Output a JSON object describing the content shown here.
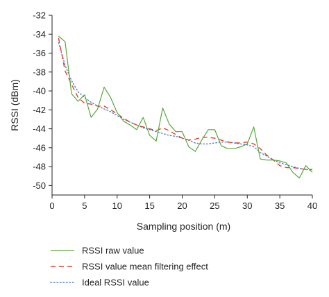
{
  "chart_data": {
    "type": "line",
    "xlabel": "Sampling position (m)",
    "ylabel": "RSSI (dBm)",
    "xlim": [
      0,
      40
    ],
    "ylim": [
      -51,
      -32
    ],
    "xticks": [
      0,
      5,
      10,
      15,
      20,
      25,
      30,
      35,
      40
    ],
    "yticks": [
      -32,
      -34,
      -36,
      -38,
      -40,
      -42,
      -44,
      -46,
      -48,
      -50
    ],
    "grid": false,
    "legend_position": "bottom",
    "series": [
      {
        "name": "RSSI raw value",
        "color": "#5aa53c",
        "style": "solid",
        "x": [
          1,
          2,
          3,
          4,
          5,
          6,
          7,
          8,
          9,
          10,
          11,
          12,
          13,
          14,
          15,
          16,
          17,
          18,
          19,
          20,
          21,
          22,
          23,
          24,
          25,
          26,
          27,
          28,
          29,
          30,
          31,
          32,
          33,
          34,
          35,
          36,
          37,
          38,
          39,
          40
        ],
        "y": [
          -34.2,
          -34.8,
          -40.3,
          -41.1,
          -40.4,
          -42.8,
          -41.9,
          -39.6,
          -40.7,
          -42.3,
          -43.2,
          -43.6,
          -44.1,
          -42.8,
          -44.7,
          -45.3,
          -41.8,
          -43.5,
          -44.3,
          -44.3,
          -45.9,
          -46.4,
          -45.2,
          -44.1,
          -44.1,
          -45.8,
          -46.1,
          -46.1,
          -45.9,
          -45.6,
          -43.8,
          -47.2,
          -47.3,
          -47.3,
          -47.4,
          -47.6,
          -48.6,
          -49.2,
          -47.9,
          -48.6
        ]
      },
      {
        "name": "RSSI value mean filtering effect",
        "color": "#d9452a",
        "style": "dashed",
        "x": [
          1,
          2,
          3,
          4,
          5,
          6,
          7,
          8,
          9,
          10,
          11,
          12,
          13,
          14,
          15,
          16,
          17,
          18,
          19,
          20,
          21,
          22,
          23,
          24,
          25,
          26,
          27,
          28,
          29,
          30,
          31,
          32,
          33,
          34,
          35,
          36,
          37,
          38,
          39,
          40
        ],
        "y": [
          -34.4,
          -37.9,
          -39.3,
          -40.7,
          -41.3,
          -41.4,
          -41.6,
          -41.6,
          -42.0,
          -42.4,
          -42.9,
          -43.3,
          -43.6,
          -43.8,
          -44.0,
          -44.2,
          -43.9,
          -44.2,
          -44.6,
          -45.0,
          -45.2,
          -45.1,
          -44.9,
          -44.9,
          -45.0,
          -45.2,
          -45.4,
          -45.5,
          -45.5,
          -45.4,
          -45.6,
          -46.1,
          -46.8,
          -47.3,
          -47.9,
          -48.1,
          -48.1,
          -48.2,
          -48.3,
          -48.3
        ]
      },
      {
        "name": "Ideal RSSI value",
        "color": "#4a7fc9",
        "style": "dotted",
        "x": [
          1,
          2,
          3,
          4,
          5,
          6,
          7,
          8,
          9,
          10,
          11,
          12,
          13,
          14,
          15,
          16,
          17,
          18,
          19,
          20,
          21,
          22,
          23,
          24,
          25,
          26,
          27,
          28,
          29,
          30,
          31,
          32,
          33,
          34,
          35,
          36,
          37,
          38,
          39,
          40
        ],
        "y": [
          -34.9,
          -37.3,
          -38.9,
          -40.1,
          -40.7,
          -41.2,
          -41.6,
          -41.9,
          -42.2,
          -42.6,
          -43.0,
          -43.3,
          -43.6,
          -43.9,
          -44.1,
          -44.3,
          -44.5,
          -44.7,
          -44.8,
          -45.0,
          -45.2,
          -45.5,
          -45.6,
          -45.6,
          -45.5,
          -45.4,
          -45.4,
          -45.5,
          -45.6,
          -45.7,
          -45.9,
          -46.5,
          -46.9,
          -47.3,
          -47.6,
          -47.8,
          -48.0,
          -48.2,
          -48.3,
          -48.4
        ]
      }
    ]
  }
}
